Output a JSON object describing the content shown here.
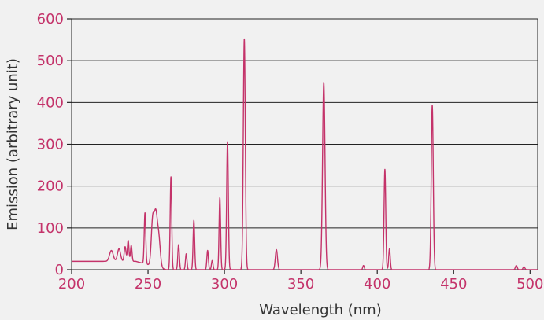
{
  "colors": {
    "background": "#f1f1f1",
    "plot_background": "#f1f1f1",
    "series": "#c4336a",
    "tick_labels": "#c4336a",
    "axis_titles": "#333333",
    "grid": "#222222"
  },
  "chart_data": {
    "type": "line",
    "title": "",
    "xlabel": "Wavelength (nm)",
    "ylabel": "Emission (arbitrary unit)",
    "xlim": [
      200,
      505
    ],
    "ylim": [
      0,
      600
    ],
    "xticks": [
      200,
      250,
      300,
      350,
      400,
      450,
      500
    ],
    "yticks": [
      0,
      100,
      200,
      300,
      400,
      500,
      600
    ],
    "grid": "horizontal",
    "legend": "none",
    "baseline": 20,
    "peaks": [
      {
        "x": 226,
        "y": 26,
        "w": 1.2
      },
      {
        "x": 231,
        "y": 30,
        "w": 1.0
      },
      {
        "x": 235,
        "y": 35,
        "w": 0.6
      },
      {
        "x": 237,
        "y": 50,
        "w": 0.5
      },
      {
        "x": 239,
        "y": 38,
        "w": 0.5
      },
      {
        "x": 248,
        "y": 122,
        "w": 0.5
      },
      {
        "x": 253,
        "y": 105,
        "w": 0.9
      },
      {
        "x": 255,
        "y": 120,
        "w": 1.0
      },
      {
        "x": 257,
        "y": 70,
        "w": 1.0
      },
      {
        "x": 265,
        "y": 222,
        "w": 0.5
      },
      {
        "x": 270,
        "y": 60,
        "w": 0.5
      },
      {
        "x": 275,
        "y": 38,
        "w": 0.5
      },
      {
        "x": 280,
        "y": 118,
        "w": 0.5
      },
      {
        "x": 289,
        "y": 46,
        "w": 0.5
      },
      {
        "x": 292,
        "y": 22,
        "w": 0.5
      },
      {
        "x": 297,
        "y": 172,
        "w": 0.5
      },
      {
        "x": 302,
        "y": 306,
        "w": 0.55
      },
      {
        "x": 313,
        "y": 552,
        "w": 0.65
      },
      {
        "x": 334,
        "y": 48,
        "w": 0.7
      },
      {
        "x": 365,
        "y": 448,
        "w": 0.8
      },
      {
        "x": 391,
        "y": 10,
        "w": 0.5
      },
      {
        "x": 405,
        "y": 240,
        "w": 0.55
      },
      {
        "x": 408,
        "y": 50,
        "w": 0.5
      },
      {
        "x": 436,
        "y": 393,
        "w": 0.65
      },
      {
        "x": 491,
        "y": 10,
        "w": 0.6
      },
      {
        "x": 496,
        "y": 7,
        "w": 0.6
      }
    ]
  }
}
